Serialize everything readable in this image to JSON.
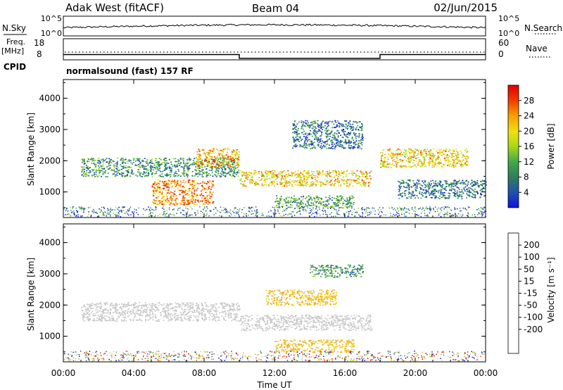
{
  "header": {
    "station": "Adak West (fitACF)",
    "beam": "Beam 04",
    "date": "02/Jun/2015"
  },
  "nsky_panel": {
    "left_label": "N.Sky",
    "right_label": "N.Search",
    "left_ticks": [
      "10^5",
      "10^0"
    ],
    "right_ticks": [
      "10^5",
      "10^0"
    ]
  },
  "freq_panel": {
    "left_label_line1": "Freq.",
    "left_label_line2": "[MHz]",
    "left_ticks": [
      "18",
      "8"
    ],
    "right_label": "Nave",
    "right_ticks": [
      "60",
      "0"
    ],
    "freq_mhz": {
      "times_ut": [
        "00:00",
        "10:00",
        "10:00",
        "18:00",
        "18:00",
        "24:00"
      ],
      "values": [
        12.5,
        12.5,
        10.7,
        10.7,
        12.5,
        12.5
      ]
    }
  },
  "cpid_panel": {
    "label": "CPID",
    "program": "normalsound (fast) 157 RF"
  },
  "chart_data": [
    {
      "type": "heatmap",
      "quantity": "power",
      "ylabel": "Slant Range [km]",
      "yticks": [
        "1000",
        "2000",
        "3000",
        "4000"
      ],
      "ylim": [
        180,
        4600
      ],
      "xlim": [
        "00:00",
        "24:00"
      ],
      "colorbar": {
        "label": "Power [dB]",
        "ticks": [
          "4",
          "8",
          "12",
          "16",
          "20",
          "24",
          "28"
        ],
        "range": [
          0,
          32
        ],
        "colors": [
          "#1010e0",
          "#1f4fb0",
          "#2f7f5a",
          "#3fa84a",
          "#a8d81a",
          "#f0e010",
          "#f8a000",
          "#f04000",
          "#e00000"
        ]
      },
      "features": [
        {
          "t_start": 1.0,
          "t_end": 10.0,
          "range_start_km": 1500,
          "range_end_km": 2100,
          "power_db": 10
        },
        {
          "t_start": 5.0,
          "t_end": 8.5,
          "range_start_km": 600,
          "range_end_km": 1400,
          "power_db": 24
        },
        {
          "t_start": 7.5,
          "t_end": 10.0,
          "range_start_km": 1800,
          "range_end_km": 2400,
          "power_db": 22
        },
        {
          "t_start": 10.0,
          "t_end": 17.5,
          "range_start_km": 1200,
          "range_end_km": 1700,
          "power_db": 20
        },
        {
          "t_start": 12.0,
          "t_end": 16.5,
          "range_start_km": 500,
          "range_end_km": 900,
          "power_db": 12
        },
        {
          "t_start": 13.0,
          "t_end": 17.0,
          "range_start_km": 2400,
          "range_end_km": 3300,
          "power_db": 8
        },
        {
          "t_start": 18.0,
          "t_end": 23.0,
          "range_start_km": 1800,
          "range_end_km": 2400,
          "power_db": 20
        },
        {
          "t_start": 19.0,
          "t_end": 24.0,
          "range_start_km": 800,
          "range_end_km": 1400,
          "power_db": 8
        }
      ]
    },
    {
      "type": "heatmap",
      "quantity": "velocity",
      "ylabel": "Slant Range [km]",
      "yticks": [
        "1000",
        "2000",
        "3000",
        "4000"
      ],
      "ylim": [
        180,
        4600
      ],
      "xlabel": "Time UT",
      "xticks": [
        "00:00",
        "04:00",
        "08:00",
        "12:00",
        "16:00",
        "20:00",
        "00:00"
      ],
      "xlim": [
        "00:00",
        "24:00"
      ],
      "colorbar": {
        "label": "Velocity [m s⁻¹]",
        "ticks": [
          "200",
          "100",
          "50",
          "15",
          "-15",
          "-50",
          "-100",
          "-200"
        ],
        "range": [
          -250,
          250
        ],
        "colors": [
          "#e00000",
          "#f04000",
          "#f8a000",
          "#f0c000",
          "#c8c8c8",
          "#c8c8c8",
          "#7fd040",
          "#3f8f5a",
          "#1f4fb0",
          "#1010c0"
        ]
      },
      "features": [
        {
          "t_start": 1.0,
          "t_end": 10.0,
          "range_start_km": 1500,
          "range_end_km": 2100,
          "velocity_ms": 0
        },
        {
          "t_start": 10.0,
          "t_end": 17.5,
          "range_start_km": 1200,
          "range_end_km": 1700,
          "velocity_ms": 0
        },
        {
          "t_start": 12.0,
          "t_end": 16.5,
          "range_start_km": 500,
          "range_end_km": 900,
          "velocity_ms": -40
        },
        {
          "t_start": 11.5,
          "t_end": 15.5,
          "range_start_km": 2000,
          "range_end_km": 2500,
          "velocity_ms": -40
        },
        {
          "t_start": 14.0,
          "t_end": 17.0,
          "range_start_km": 2900,
          "range_end_km": 3300,
          "velocity_ms": 40
        }
      ]
    }
  ]
}
